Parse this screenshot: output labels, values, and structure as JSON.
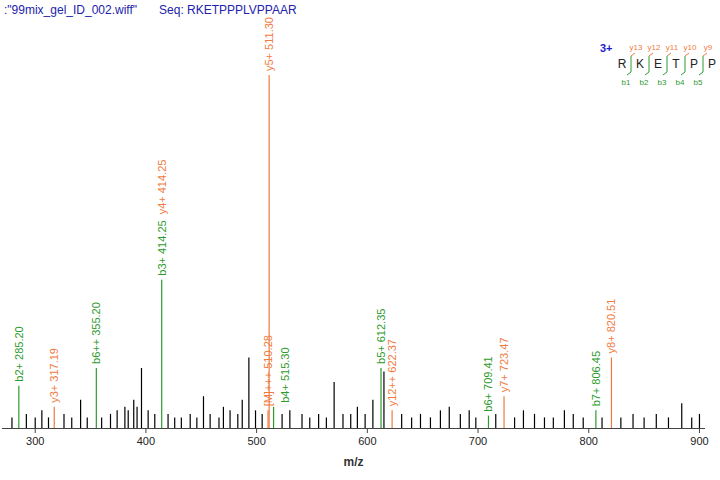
{
  "chart_data": {
    "type": "spectrum",
    "title": ":\"99mix_gel_ID_002.wiff\"",
    "subtitle": "Seq: RKETPPPLVPPAAR",
    "x_label": "m/z",
    "xlim": [
      270,
      905
    ],
    "xticks": [
      300,
      400,
      500,
      600,
      700,
      800,
      900
    ],
    "ylim": [
      0,
      100
    ],
    "tick_labels": "x",
    "x": [
      279,
      285.2,
      292,
      300,
      306,
      312,
      317.19,
      326,
      333,
      341,
      347,
      355.2,
      360,
      368,
      374,
      381,
      384,
      389,
      392,
      396,
      402,
      408,
      414.25,
      420,
      426,
      432,
      440,
      446,
      452,
      458,
      466,
      470,
      476,
      483,
      487,
      493,
      499,
      505,
      510.28,
      511.3,
      515.3,
      523,
      530,
      541,
      548,
      556,
      563,
      570,
      578,
      585,
      591,
      598,
      605,
      612.35,
      615,
      622.37,
      631,
      640,
      648,
      657,
      666,
      674,
      684,
      692,
      698,
      709.41,
      716,
      723.47,
      733,
      741,
      751,
      760,
      768,
      778,
      786,
      795,
      806.45,
      812,
      820.51,
      829,
      840,
      850,
      861,
      872,
      884,
      893,
      900
    ],
    "values": [
      3,
      12,
      4,
      3,
      5,
      3,
      6,
      4,
      3,
      8,
      3,
      17,
      3,
      4,
      5,
      6,
      5,
      8,
      6,
      17,
      5,
      4,
      42,
      4,
      3,
      3,
      4,
      3,
      9,
      4,
      3,
      6,
      5,
      4,
      8,
      20,
      5,
      4,
      5,
      100,
      6,
      4,
      5,
      4,
      3,
      4,
      3,
      13,
      4,
      4,
      6,
      4,
      8,
      17,
      16,
      5,
      4,
      3,
      4,
      3,
      5,
      6,
      4,
      5,
      3,
      3.5,
      4,
      9,
      3,
      5,
      4,
      3,
      3,
      5,
      4,
      3,
      5,
      3,
      20,
      3,
      4,
      3,
      4,
      3,
      7,
      3,
      4
    ],
    "colors": [
      "#000000",
      "#2e9a2e",
      "#000000",
      "#000000",
      "#000000",
      "#000000",
      "#f07b3f",
      "#000000",
      "#000000",
      "#000000",
      "#000000",
      "#2e9a2e",
      "#000000",
      "#000000",
      "#000000",
      "#000000",
      "#000000",
      "#000000",
      "#000000",
      "#000000",
      "#000000",
      "#000000",
      "#2e9a2e",
      "#000000",
      "#000000",
      "#000000",
      "#000000",
      "#000000",
      "#000000",
      "#000000",
      "#000000",
      "#000000",
      "#000000",
      "#000000",
      "#000000",
      "#000000",
      "#000000",
      "#000000",
      "#f07b3f",
      "#f07b3f",
      "#2e9a2e",
      "#000000",
      "#000000",
      "#000000",
      "#000000",
      "#000000",
      "#000000",
      "#000000",
      "#000000",
      "#000000",
      "#000000",
      "#000000",
      "#000000",
      "#2e9a2e",
      "#000000",
      "#f07b3f",
      "#000000",
      "#000000",
      "#000000",
      "#000000",
      "#000000",
      "#000000",
      "#000000",
      "#000000",
      "#000000",
      "#2e9a2e",
      "#000000",
      "#f07b3f",
      "#000000",
      "#000000",
      "#000000",
      "#000000",
      "#000000",
      "#000000",
      "#000000",
      "#000000",
      "#2e9a2e",
      "#000000",
      "#f07b3f",
      "#000000",
      "#000000",
      "#000000",
      "#000000",
      "#000000",
      "#000000",
      "#000000",
      "#000000"
    ],
    "labels": [
      null,
      [
        "b2+ 285.20"
      ],
      null,
      null,
      null,
      null,
      [
        "y3+ 317.19"
      ],
      null,
      null,
      null,
      null,
      [
        "b6++ 355.20"
      ],
      null,
      null,
      null,
      null,
      null,
      null,
      null,
      null,
      null,
      null,
      [
        "b3+ 414.25",
        "y4+ 414.25"
      ],
      null,
      null,
      null,
      null,
      null,
      null,
      null,
      null,
      null,
      null,
      null,
      null,
      null,
      null,
      null,
      [
        "[M]+++ 510.28"
      ],
      [
        "y5+ 511.30"
      ],
      [
        "b4+ 515.30"
      ],
      null,
      null,
      null,
      null,
      null,
      null,
      null,
      null,
      null,
      null,
      null,
      null,
      [
        "b5+ 612.35"
      ],
      null,
      [
        "y12++ 622.37"
      ],
      null,
      null,
      null,
      null,
      null,
      null,
      null,
      null,
      null,
      [
        "b6+ 709.41"
      ],
      null,
      [
        "y7+ 723.47"
      ],
      null,
      null,
      null,
      null,
      null,
      null,
      null,
      null,
      [
        "b7+ 806.45"
      ],
      null,
      [
        "y8+ 820.51"
      ],
      null,
      null,
      null,
      null,
      null,
      null,
      null,
      null
    ],
    "label_colors": [
      null,
      [
        "#2e9a2e"
      ],
      null,
      null,
      null,
      null,
      [
        "#f07b3f"
      ],
      null,
      null,
      null,
      null,
      [
        "#2e9a2e"
      ],
      null,
      null,
      null,
      null,
      null,
      null,
      null,
      null,
      null,
      null,
      [
        "#2e9a2e",
        "#f07b3f"
      ],
      null,
      null,
      null,
      null,
      null,
      null,
      null,
      null,
      null,
      null,
      null,
      null,
      null,
      null,
      null,
      [
        "#f07b3f"
      ],
      [
        "#f07b3f"
      ],
      [
        "#2e9a2e"
      ],
      null,
      null,
      null,
      null,
      null,
      null,
      null,
      null,
      null,
      null,
      null,
      null,
      [
        "#2e9a2e"
      ],
      null,
      [
        "#f07b3f"
      ],
      null,
      null,
      null,
      null,
      null,
      null,
      null,
      null,
      null,
      [
        "#2e9a2e"
      ],
      null,
      [
        "#f07b3f"
      ],
      null,
      null,
      null,
      null,
      null,
      null,
      null,
      null,
      [
        "#2e9a2e"
      ],
      null,
      [
        "#f07b3f"
      ],
      null,
      null,
      null,
      null,
      null,
      null,
      null,
      null
    ],
    "sequence": {
      "charge": "3+",
      "residues": [
        "R",
        "K",
        "E",
        "T",
        "P",
        "P"
      ],
      "b_labels": [
        "b1",
        "b2",
        "b3",
        "b4",
        "b5"
      ],
      "y_labels": [
        "y13",
        "y12",
        "y11",
        "y10",
        "y9"
      ]
    }
  }
}
